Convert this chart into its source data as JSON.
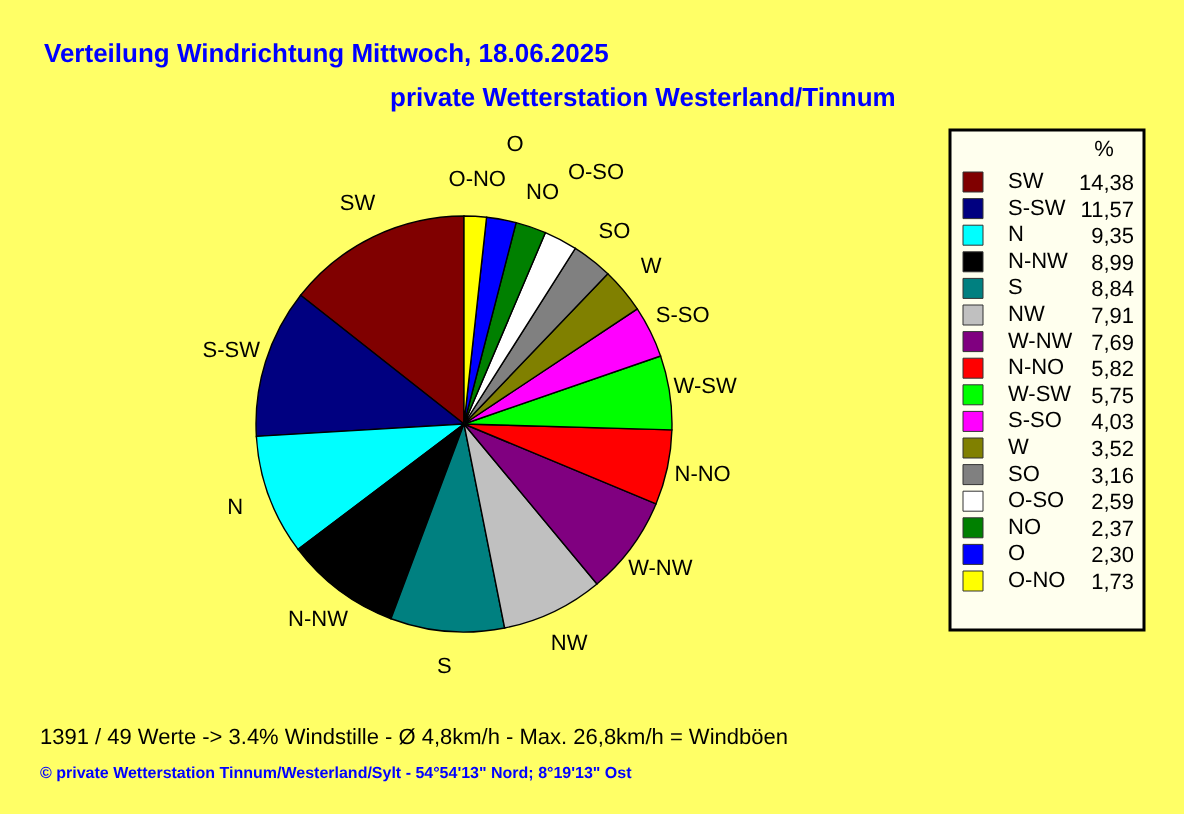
{
  "chart_data": {
    "type": "pie",
    "title": "Verteilung Windrichtung Mittwoch, 18.06.2025",
    "subtitle": "private Wetterstation Westerland/Tinnum",
    "legend_title": "%",
    "categories": [
      "SW",
      "S-SW",
      "N",
      "N-NW",
      "S",
      "NW",
      "W-NW",
      "N-NO",
      "W-SW",
      "S-SO",
      "W",
      "SO",
      "O-SO",
      "NO",
      "O",
      "O-NO"
    ],
    "values": [
      14.38,
      11.57,
      9.35,
      8.99,
      8.84,
      7.91,
      7.69,
      5.82,
      5.75,
      4.03,
      3.52,
      3.16,
      2.59,
      2.37,
      2.3,
      1.73
    ],
    "value_labels": [
      "14,38",
      "11,57",
      "9,35",
      "8,99",
      "8,84",
      "7,91",
      "7,69",
      "5,82",
      "5,75",
      "4,03",
      "3,52",
      "3,16",
      "2,59",
      "2,37",
      "2,30",
      "1,73"
    ],
    "colors": [
      "#800000",
      "#000080",
      "#00ffff",
      "#000000",
      "#008080",
      "#c0c0c0",
      "#800080",
      "#ff0000",
      "#00ff00",
      "#ff00ff",
      "#808000",
      "#808080",
      "#ffffff",
      "#008000",
      "#0000ff",
      "#ffff00"
    ],
    "legend": "right",
    "annotations": [
      "1391 / 49 Werte -> 3.4% Windstille - Ø 4,8km/h - Max. 26,8km/h = Windböen",
      "© private Wetterstation Tinnum/Westerland/Sylt - 54°54'13\" Nord; 8°19'13\" Ost"
    ]
  }
}
